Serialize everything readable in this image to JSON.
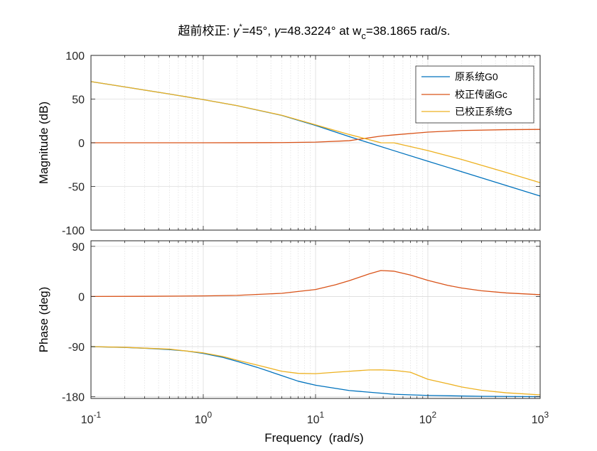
{
  "chart_data": [
    {
      "type": "line",
      "name": "magnitude",
      "title_parts": {
        "prefix": "超前校正: ",
        "gamma": "γ",
        "star": "*",
        "gamma_star_value": "=45°, ",
        "gamma_value": "=48.3224° at w",
        "sub_c": "c",
        "wc_value": "=38.1865 rad/s."
      },
      "title": "超前校正: γ*=45°, γ=48.3224° at wc=38.1865 rad/s.",
      "xlabel": "",
      "ylabel": "Magnitude (dB)",
      "xscale": "log",
      "xlim": [
        0.1,
        1000
      ],
      "ylim": [
        -100,
        100
      ],
      "yticks": [
        -100,
        -50,
        0,
        50,
        100
      ],
      "ytick_labels": [
        "-100",
        "-50",
        "0",
        "50",
        "100"
      ],
      "grid": true,
      "legend_position": "top-right",
      "series": [
        {
          "name": "原系统G0",
          "color": "#0072BD",
          "x": [
            0.1,
            0.2,
            0.5,
            1,
            2,
            5,
            10,
            20,
            50,
            100,
            200,
            500,
            1000
          ],
          "y": [
            70,
            63.9,
            55.8,
            49.4,
            42.5,
            31.3,
            19.8,
            7.0,
            -9.1,
            -21.1,
            -33.1,
            -49.0,
            -61.0
          ]
        },
        {
          "name": "校正传函Gc",
          "color": "#D95319",
          "x": [
            0.1,
            1,
            2,
            5,
            10,
            20,
            38.19,
            50,
            100,
            200,
            500,
            1000
          ],
          "y": [
            0.0,
            0.01,
            0.03,
            0.2,
            0.7,
            2.4,
            7.65,
            9.0,
            12.2,
            14.0,
            15.0,
            15.3
          ]
        },
        {
          "name": "已校正系统G",
          "color": "#EDB120",
          "x": [
            0.1,
            0.2,
            0.5,
            1,
            2,
            5,
            10,
            20,
            38.19,
            50,
            100,
            200,
            500,
            1000
          ],
          "y": [
            70,
            63.9,
            55.8,
            49.4,
            42.5,
            31.5,
            20.5,
            9.4,
            0,
            -0.1,
            -8.9,
            -19.1,
            -34.0,
            -45.7
          ]
        }
      ]
    },
    {
      "type": "line",
      "name": "phase",
      "xlabel_parts": {
        "text": "Frequency",
        "units": "(rad/s)"
      },
      "xlabel": "Frequency  (rad/s)",
      "ylabel": "Phase (deg)",
      "xscale": "log",
      "xlim": [
        0.1,
        1000
      ],
      "ylim": [
        -183,
        100
      ],
      "yticks": [
        -180,
        -90,
        0,
        90
      ],
      "ytick_labels": [
        "-180",
        "-90",
        "0",
        "90"
      ],
      "xticks": [
        0.1,
        1,
        10,
        100,
        1000
      ],
      "xtick_labels": [
        {
          "base": "10",
          "exp": "-1"
        },
        {
          "base": "10",
          "exp": "0"
        },
        {
          "base": "10",
          "exp": "1"
        },
        {
          "base": "10",
          "exp": "2"
        },
        {
          "base": "10",
          "exp": "3"
        }
      ],
      "grid": true,
      "series": [
        {
          "name": "原系统G0",
          "color": "#0072BD",
          "x": [
            0.1,
            0.2,
            0.3,
            0.5,
            0.7,
            1,
            1.5,
            2,
            3,
            5,
            7,
            10,
            20,
            50,
            100,
            300,
            1000
          ],
          "y": [
            -90,
            -91.5,
            -92.9,
            -95.3,
            -97.8,
            -102.2,
            -109.3,
            -116.4,
            -127.0,
            -142.0,
            -152.0,
            -159.3,
            -168.8,
            -175.5,
            -177.6,
            -179.2,
            -179.8
          ]
        },
        {
          "name": "校正传函Gc",
          "color": "#D95319",
          "x": [
            0.1,
            0.3,
            1,
            2,
            5,
            10,
            15,
            20,
            30,
            38.19,
            50,
            70,
            100,
            150,
            200,
            300,
            500,
            1000
          ],
          "y": [
            0.1,
            0.3,
            1.0,
            2.0,
            5.7,
            12.5,
            21.0,
            28.5,
            40.5,
            46.6,
            45.4,
            38.5,
            29.0,
            20.0,
            15.2,
            10.3,
            6.4,
            3.2
          ]
        },
        {
          "name": "已校正系统G",
          "color": "#EDB120",
          "x": [
            0.1,
            0.2,
            0.5,
            1,
            1.5,
            2,
            3,
            5,
            7,
            10,
            15,
            20,
            30,
            38.19,
            50,
            70,
            100,
            150,
            200,
            300,
            500,
            1000
          ],
          "y": [
            -89.9,
            -91.3,
            -94.5,
            -101.2,
            -107.8,
            -114.3,
            -123.0,
            -134.2,
            -138.0,
            -138.5,
            -136.0,
            -134.2,
            -131.8,
            -131.7,
            -132.7,
            -136.0,
            -148.6,
            -156.5,
            -162.4,
            -168.3,
            -172.9,
            -176.6
          ]
        }
      ]
    }
  ]
}
